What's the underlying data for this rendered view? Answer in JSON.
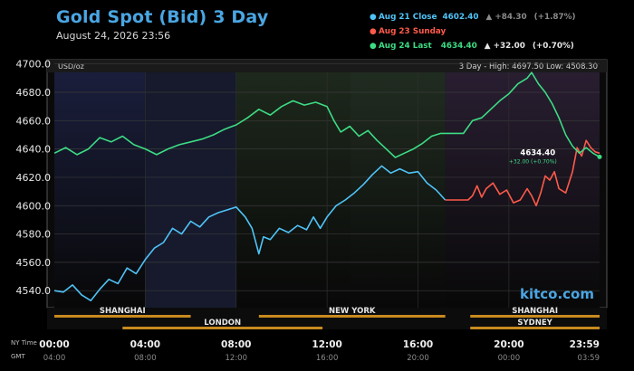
{
  "header": {
    "title": "Gold Spot (Bid) 3 Day",
    "timestamp": "August 24, 2026 23:56"
  },
  "legend": [
    {
      "label": "Aug 21 Close",
      "value": "4602.40",
      "direction": "▲",
      "change": "+84.30",
      "percent": "(+1.87%)",
      "color": "#4fc3f7"
    },
    {
      "label": "Aug 23 Sunday",
      "value": "",
      "direction": "",
      "change": "",
      "percent": "",
      "color": "#ff5a4a"
    },
    {
      "label": "Aug 24 Last",
      "value": "4634.40",
      "direction": "▲",
      "change": "+32.00",
      "percent": "(+0.70%)",
      "color": "#3ddc84"
    }
  ],
  "plot": {
    "unit": "USD/oz",
    "range_text": "3 Day - High: 4697.50  Low: 4508.30",
    "watermark": "kitco.com",
    "last_label": "4634.40",
    "last_change": "+32.00 (+0.70%)"
  },
  "sessions": {
    "top": [
      {
        "label": "SHANGHAI",
        "start": 0,
        "end": 6
      },
      {
        "label": "NEW YORK",
        "start": 9,
        "end": 17.2
      },
      {
        "label": "SHANGHAI",
        "start": 18.3,
        "end": 23.99
      }
    ],
    "bottom": [
      {
        "label": "LONDON",
        "start": 3,
        "end": 11.8
      },
      {
        "label": "SYDNEY",
        "start": 18.3,
        "end": 23.99
      }
    ]
  },
  "time_axis": {
    "ny_label": "NY Time",
    "gmt_label": "GMT",
    "ny_ticks": [
      "00:00",
      "04:00",
      "08:00",
      "12:00",
      "16:00",
      "20:00",
      "23:59"
    ],
    "gmt_ticks": [
      "04:00",
      "08:00",
      "12:00",
      "16:00",
      "20:00",
      "00:00",
      "03:59"
    ]
  },
  "colors": {
    "close_series": "#4fc3f7",
    "sunday_series": "#ff5a4a",
    "last_series": "#3ddc84",
    "session_bar": "#c88a1e",
    "title": "#4aa6e3"
  },
  "chart_data": {
    "type": "line",
    "title": "Gold Spot (Bid) 3 Day",
    "ylabel": "USD/oz",
    "ylim": [
      4528,
      4703
    ],
    "y_ticks": [
      "4700.0",
      "4680.0",
      "4660.0",
      "4640.0",
      "4620.0",
      "4600.0",
      "4580.0",
      "4560.0",
      "4540.0"
    ],
    "xlim": [
      0,
      23.99
    ],
    "x_unit": "NY time (hours)",
    "series": [
      {
        "name": "Aug 21 Close",
        "color": "#4fc3f7",
        "points": [
          [
            0,
            4540
          ],
          [
            0.4,
            4539
          ],
          [
            0.8,
            4544
          ],
          [
            1.2,
            4537
          ],
          [
            1.6,
            4533
          ],
          [
            2.0,
            4541
          ],
          [
            2.4,
            4548
          ],
          [
            2.8,
            4545
          ],
          [
            3.2,
            4556
          ],
          [
            3.6,
            4552
          ],
          [
            4.0,
            4562
          ],
          [
            4.4,
            4570
          ],
          [
            4.8,
            4574
          ],
          [
            5.2,
            4584
          ],
          [
            5.6,
            4580
          ],
          [
            6.0,
            4589
          ],
          [
            6.4,
            4585
          ],
          [
            6.8,
            4592
          ],
          [
            7.2,
            4595
          ],
          [
            7.6,
            4597
          ],
          [
            8.0,
            4599
          ],
          [
            8.4,
            4592
          ],
          [
            8.7,
            4584
          ],
          [
            9.0,
            4566
          ],
          [
            9.2,
            4578
          ],
          [
            9.5,
            4576
          ],
          [
            9.9,
            4584
          ],
          [
            10.3,
            4581
          ],
          [
            10.7,
            4586
          ],
          [
            11.1,
            4583
          ],
          [
            11.4,
            4592
          ],
          [
            11.7,
            4584
          ],
          [
            12.0,
            4592
          ],
          [
            12.4,
            4600
          ],
          [
            12.8,
            4604
          ],
          [
            13.2,
            4609
          ],
          [
            13.6,
            4615
          ],
          [
            14.0,
            4622
          ],
          [
            14.4,
            4628
          ],
          [
            14.8,
            4623
          ],
          [
            15.2,
            4626
          ],
          [
            15.6,
            4623
          ],
          [
            16.0,
            4624
          ],
          [
            16.4,
            4616
          ],
          [
            16.8,
            4611
          ],
          [
            17.2,
            4604
          ]
        ]
      },
      {
        "name": "Aug 23 Sunday",
        "color": "#ff5a4a",
        "points": [
          [
            17.2,
            4604
          ],
          [
            18.2,
            4604
          ],
          [
            18.4,
            4607
          ],
          [
            18.6,
            4614
          ],
          [
            18.8,
            4606
          ],
          [
            19.0,
            4612
          ],
          [
            19.3,
            4616
          ],
          [
            19.6,
            4608
          ],
          [
            19.9,
            4611
          ],
          [
            20.2,
            4602
          ],
          [
            20.5,
            4604
          ],
          [
            20.8,
            4612
          ],
          [
            21.0,
            4607
          ],
          [
            21.2,
            4600
          ],
          [
            21.4,
            4609
          ],
          [
            21.6,
            4621
          ],
          [
            21.8,
            4618
          ],
          [
            22.0,
            4624
          ],
          [
            22.2,
            4612
          ],
          [
            22.5,
            4609
          ],
          [
            22.8,
            4624
          ],
          [
            23.0,
            4641
          ],
          [
            23.2,
            4635
          ],
          [
            23.4,
            4646
          ],
          [
            23.6,
            4641
          ],
          [
            23.8,
            4638
          ],
          [
            23.99,
            4637
          ]
        ]
      },
      {
        "name": "Aug 24 Last",
        "color": "#3ddc84",
        "points": [
          [
            0,
            4637
          ],
          [
            0.5,
            4641
          ],
          [
            1.0,
            4636
          ],
          [
            1.5,
            4640
          ],
          [
            2.0,
            4648
          ],
          [
            2.5,
            4645
          ],
          [
            3.0,
            4649
          ],
          [
            3.5,
            4643
          ],
          [
            4.0,
            4640
          ],
          [
            4.5,
            4636
          ],
          [
            5.0,
            4640
          ],
          [
            5.5,
            4643
          ],
          [
            6.0,
            4645
          ],
          [
            6.5,
            4647
          ],
          [
            7.0,
            4650
          ],
          [
            7.5,
            4654
          ],
          [
            8.0,
            4657
          ],
          [
            8.5,
            4662
          ],
          [
            9.0,
            4668
          ],
          [
            9.5,
            4664
          ],
          [
            10.0,
            4670
          ],
          [
            10.5,
            4674
          ],
          [
            11.0,
            4671
          ],
          [
            11.5,
            4673
          ],
          [
            12.0,
            4670
          ],
          [
            12.3,
            4660
          ],
          [
            12.6,
            4652
          ],
          [
            13.0,
            4656
          ],
          [
            13.4,
            4649
          ],
          [
            13.8,
            4653
          ],
          [
            14.2,
            4646
          ],
          [
            14.6,
            4640
          ],
          [
            15.0,
            4634
          ],
          [
            15.4,
            4637
          ],
          [
            15.8,
            4640
          ],
          [
            16.2,
            4644
          ],
          [
            16.6,
            4649
          ],
          [
            17.0,
            4651
          ],
          [
            17.5,
            4651
          ],
          [
            18.0,
            4651
          ],
          [
            18.4,
            4660
          ],
          [
            18.8,
            4662
          ],
          [
            19.2,
            4668
          ],
          [
            19.6,
            4674
          ],
          [
            20.0,
            4679
          ],
          [
            20.4,
            4686
          ],
          [
            20.8,
            4690
          ],
          [
            21.0,
            4694
          ],
          [
            21.3,
            4686
          ],
          [
            21.6,
            4680
          ],
          [
            21.9,
            4672
          ],
          [
            22.2,
            4662
          ],
          [
            22.5,
            4650
          ],
          [
            22.8,
            4642
          ],
          [
            23.1,
            4637
          ],
          [
            23.4,
            4641
          ],
          [
            23.7,
            4637
          ],
          [
            23.99,
            4634.4
          ]
        ]
      }
    ]
  }
}
